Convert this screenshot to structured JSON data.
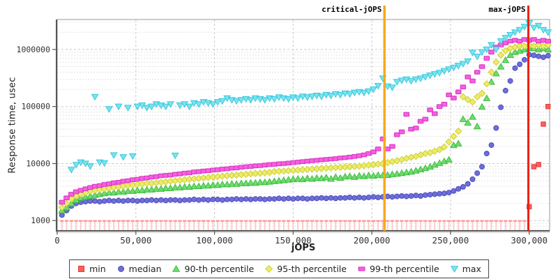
{
  "chart_data": {
    "type": "scatter",
    "title": "",
    "xlabel": "jOPS",
    "ylabel": "Response time, usec",
    "y_scale": "log",
    "grid": true,
    "legend_position": "bottom",
    "xlim": [
      0,
      313000
    ],
    "ylim": [
      660,
      3350000
    ],
    "x_ticks": [
      0,
      50000,
      100000,
      150000,
      200000,
      250000,
      300000
    ],
    "x_tick_labels": [
      "0",
      "50,000",
      "100,000",
      "150,000",
      "200,000",
      "250,000",
      "300,000"
    ],
    "y_ticks": [
      1000,
      10000,
      100000,
      1000000
    ],
    "y_tick_labels": [
      "1000",
      "10000",
      "100000",
      "1000000"
    ],
    "annotations": [
      {
        "label": "critical-jOPS",
        "x": 208000,
        "color": "#f7a81b",
        "width": 3.5
      },
      {
        "label": "max-jOPS",
        "x": 299500,
        "color": "#ee2211",
        "width": 3
      }
    ],
    "x": [
      3000,
      6000,
      9000,
      12000,
      15000,
      18000,
      21000,
      24000,
      27000,
      30000,
      33000,
      36000,
      39000,
      42000,
      45000,
      48000,
      51000,
      54000,
      57000,
      60000,
      63000,
      66000,
      69000,
      72000,
      75000,
      78000,
      81000,
      84000,
      87000,
      90000,
      93000,
      96000,
      99000,
      102000,
      105000,
      108000,
      111000,
      114000,
      117000,
      120000,
      123000,
      126000,
      129000,
      132000,
      135000,
      138000,
      141000,
      144000,
      147000,
      150000,
      153000,
      156000,
      159000,
      162000,
      165000,
      168000,
      171000,
      174000,
      177000,
      180000,
      183000,
      186000,
      189000,
      192000,
      195000,
      198000,
      201000,
      204000,
      207000,
      210000,
      213000,
      216000,
      219000,
      222000,
      225000,
      228000,
      231000,
      234000,
      237000,
      240000,
      243000,
      246000,
      249000,
      252000,
      255000,
      258000,
      261000,
      264000,
      267000,
      270000,
      273000,
      276000,
      279000,
      282000,
      285000,
      288000,
      291000,
      294000,
      297000,
      300000,
      303000,
      306000,
      309000,
      312000
    ],
    "series": [
      {
        "name": "min",
        "marker": "square",
        "color": "#ff5c5c",
        "stroke": "#e03c3c",
        "tick_bar_color": "#ff9494",
        "tick_stem_color": "#ffc8c8",
        "values": [
          950,
          950,
          950,
          950,
          950,
          950,
          950,
          950,
          950,
          950,
          950,
          950,
          950,
          950,
          950,
          950,
          950,
          950,
          950,
          950,
          950,
          950,
          950,
          950,
          950,
          950,
          950,
          950,
          950,
          950,
          950,
          950,
          950,
          950,
          950,
          950,
          950,
          950,
          950,
          950,
          950,
          950,
          950,
          950,
          950,
          950,
          950,
          950,
          950,
          950,
          950,
          950,
          950,
          950,
          950,
          950,
          950,
          950,
          950,
          950,
          950,
          950,
          950,
          950,
          950,
          950,
          950,
          950,
          950,
          950,
          950,
          950,
          950,
          950,
          950,
          950,
          950,
          950,
          950,
          950,
          950,
          950,
          950,
          950,
          950,
          950,
          950,
          950,
          950,
          950,
          950,
          950,
          950,
          950,
          950,
          950,
          950,
          950,
          950,
          1750,
          8800,
          9600,
          49000,
          100000
        ]
      },
      {
        "name": "median",
        "marker": "circle",
        "color": "#6e6ed8",
        "stroke": "#4d4dc0",
        "values": [
          1250,
          1500,
          1800,
          2000,
          2100,
          2150,
          2200,
          2200,
          2150,
          2200,
          2250,
          2200,
          2250,
          2200,
          2250,
          2250,
          2200,
          2250,
          2250,
          2300,
          2250,
          2300,
          2250,
          2300,
          2300,
          2250,
          2300,
          2300,
          2350,
          2300,
          2350,
          2300,
          2350,
          2350,
          2300,
          2350,
          2350,
          2400,
          2350,
          2400,
          2350,
          2400,
          2400,
          2350,
          2400,
          2400,
          2450,
          2400,
          2450,
          2400,
          2450,
          2450,
          2400,
          2450,
          2450,
          2500,
          2450,
          2500,
          2450,
          2500,
          2500,
          2550,
          2500,
          2550,
          2500,
          2550,
          2600,
          2550,
          2600,
          2650,
          2600,
          2650,
          2700,
          2650,
          2700,
          2750,
          2700,
          2800,
          2850,
          2900,
          2950,
          3000,
          3100,
          3300,
          3600,
          3900,
          4400,
          5300,
          6800,
          8800,
          15000,
          21000,
          42000,
          97000,
          190000,
          280000,
          470000,
          550000,
          660000,
          810000,
          790000,
          760000,
          730000,
          780000
        ]
      },
      {
        "name": "90-th percentile",
        "marker": "triangle-up",
        "color": "#6edc6e",
        "stroke": "#3fbf3f",
        "values": [
          1500,
          1700,
          2000,
          2300,
          2500,
          2600,
          2700,
          2800,
          2900,
          3000,
          3100,
          3100,
          3200,
          3200,
          3300,
          3300,
          3400,
          3400,
          3500,
          3500,
          3600,
          3600,
          3700,
          3700,
          3800,
          3800,
          3900,
          3900,
          4000,
          4000,
          4100,
          4100,
          4200,
          4200,
          4300,
          4300,
          4400,
          4400,
          4500,
          4500,
          4600,
          4600,
          4700,
          4700,
          4800,
          4900,
          5000,
          5100,
          5200,
          5300,
          5400,
          5300,
          5500,
          5400,
          5600,
          5500,
          5700,
          5400,
          5800,
          5600,
          5900,
          6000,
          5800,
          6100,
          6000,
          6200,
          6100,
          6300,
          6200,
          6300,
          6500,
          6600,
          6800,
          7000,
          7200,
          7500,
          7900,
          8300,
          8800,
          9500,
          10200,
          11000,
          11700,
          21000,
          22400,
          60000,
          52000,
          66000,
          45000,
          99000,
          140000,
          270000,
          380000,
          500000,
          650000,
          800000,
          900000,
          950000,
          1000000,
          1050000,
          1050000,
          1000000,
          1050000,
          1000000
        ]
      },
      {
        "name": "95-th percentile",
        "marker": "diamond",
        "color": "#ecec6a",
        "stroke": "#cfcf35",
        "values": [
          1700,
          2000,
          2400,
          2700,
          2900,
          3100,
          3300,
          3400,
          3500,
          3600,
          3700,
          3800,
          3900,
          4000,
          4100,
          4200,
          4300,
          4400,
          4500,
          4500,
          4600,
          4700,
          4800,
          4900,
          5000,
          5100,
          5200,
          5300,
          5400,
          5500,
          5600,
          5700,
          5800,
          5900,
          6000,
          6100,
          6200,
          6300,
          6400,
          6500,
          6600,
          6700,
          6800,
          6900,
          7000,
          7200,
          7300,
          7400,
          7500,
          7600,
          7700,
          7800,
          7900,
          8000,
          8100,
          8200,
          8300,
          8400,
          8500,
          8600,
          8700,
          8800,
          8900,
          9000,
          9200,
          9400,
          9600,
          9800,
          10000,
          10400,
          10800,
          11200,
          11700,
          12300,
          12900,
          13400,
          14200,
          15000,
          15500,
          16500,
          17500,
          19500,
          24000,
          30000,
          37000,
          148000,
          132000,
          120000,
          148000,
          170000,
          250000,
          400000,
          600000,
          800000,
          950000,
          1050000,
          1100000,
          1150000,
          1150000,
          1200000,
          1150000,
          1200000,
          1150000,
          1200000
        ]
      },
      {
        "name": "99-th percentile",
        "marker": "hbar",
        "color": "#f55fe0",
        "stroke": "#d633c2",
        "values": [
          2100,
          2500,
          2900,
          3200,
          3400,
          3600,
          3800,
          4000,
          4100,
          4300,
          4400,
          4600,
          4700,
          4900,
          5000,
          5200,
          5300,
          5500,
          5600,
          5800,
          5900,
          6100,
          6200,
          6300,
          6500,
          6600,
          6800,
          6900,
          7100,
          7200,
          7400,
          7500,
          7700,
          7800,
          8000,
          8100,
          8300,
          8400,
          8600,
          8800,
          8900,
          9100,
          9200,
          9400,
          9600,
          9700,
          9900,
          10000,
          10200,
          10400,
          10600,
          10800,
          11000,
          11200,
          11400,
          11600,
          11800,
          12000,
          12200,
          12500,
          12700,
          13000,
          13300,
          13700,
          14200,
          15000,
          16000,
          18000,
          27000,
          18000,
          20000,
          32000,
          36000,
          73000,
          40000,
          42000,
          55000,
          60000,
          87000,
          75000,
          100000,
          110000,
          160000,
          141000,
          180000,
          220000,
          330000,
          280000,
          400000,
          500000,
          700000,
          900000,
          1100000,
          1200000,
          1300000,
          1400000,
          1450000,
          1400000,
          1500000,
          1450000,
          1500000,
          1400000,
          1450000,
          1400000
        ]
      },
      {
        "name": "max",
        "marker": "triangle-down",
        "color": "#79e4f0",
        "stroke": "#3cc8dc",
        "values": [
          null,
          null,
          7800,
          9500,
          10500,
          10000,
          9000,
          148000,
          10500,
          10200,
          90000,
          14000,
          100000,
          13000,
          95000,
          13500,
          100000,
          105000,
          95000,
          100000,
          110000,
          105000,
          100000,
          110000,
          13800,
          105000,
          110000,
          100000,
          115000,
          110000,
          120000,
          115000,
          110000,
          120000,
          125000,
          140000,
          130000,
          125000,
          130000,
          135000,
          130000,
          140000,
          135000,
          130000,
          140000,
          135000,
          145000,
          140000,
          135000,
          145000,
          140000,
          150000,
          145000,
          150000,
          155000,
          150000,
          160000,
          155000,
          165000,
          160000,
          170000,
          165000,
          175000,
          180000,
          175000,
          185000,
          200000,
          230000,
          310000,
          225000,
          215000,
          270000,
          285000,
          300000,
          280000,
          300000,
          310000,
          330000,
          350000,
          370000,
          390000,
          420000,
          450000,
          480000,
          520000,
          560000,
          620000,
          880000,
          750000,
          900000,
          1000000,
          1200000,
          1000000,
          1400000,
          1600000,
          1800000,
          2000000,
          2200000,
          2500000,
          2900000,
          2400000,
          2600000,
          2200000,
          2000000
        ]
      }
    ]
  }
}
